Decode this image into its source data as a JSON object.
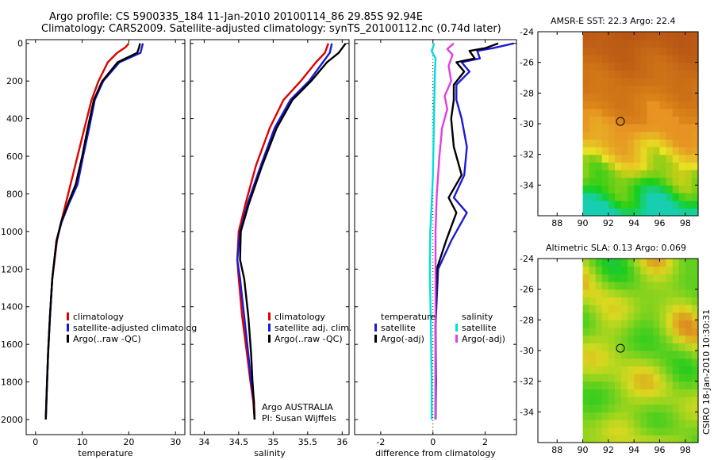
{
  "header": {
    "line1": "Argo profile: CS 5900335_184 11-Jan-2010 20100114_86 29.85S 92.94E",
    "line2": "Climatology: CARS2009. Satellite-adjusted climatology: synTS_20100112.nc (0.74d later)"
  },
  "colors": {
    "climatology": "#e00000",
    "satellite": "#1a1ad6",
    "argo": "#000000",
    "salinity_sat": "#00dede",
    "salinity_argo": "#e040e0"
  },
  "chart_data": [
    {
      "type": "line",
      "name": "temperature",
      "xlabel": "temperature",
      "ylabel": "",
      "xlim": [
        -2,
        32
      ],
      "ylim": [
        2080,
        -20
      ],
      "xticks": [
        0,
        10,
        20,
        30
      ],
      "yticks": [
        0,
        200,
        400,
        600,
        800,
        1000,
        1200,
        1400,
        1600,
        1800,
        2000
      ],
      "series": [
        {
          "name": "climatology",
          "color": "#e00000",
          "x": [
            20,
            19.3,
            17.5,
            15.5,
            13.5,
            12,
            10.5,
            9,
            7.5,
            6.5,
            5.5,
            4.6,
            3.6,
            3.1,
            2.7,
            2.4,
            2.2
          ],
          "y": [
            0,
            20,
            50,
            100,
            200,
            300,
            450,
            600,
            750,
            850,
            950,
            1050,
            1250,
            1450,
            1650,
            1850,
            2000
          ]
        },
        {
          "name": "satellite-adjusted climatology",
          "color": "#1a1ad6",
          "x": [
            23,
            22.8,
            22.5,
            18,
            14.5,
            12.7,
            11.5,
            10.2,
            9,
            7.2,
            5.6,
            4.5,
            3.6,
            3.1,
            2.7,
            2.4,
            2.2
          ],
          "y": [
            0,
            20,
            50,
            100,
            200,
            300,
            450,
            600,
            750,
            850,
            950,
            1050,
            1250,
            1450,
            1650,
            1850,
            2000
          ]
        },
        {
          "name": "Argo(..raw -QC)",
          "color": "#000000",
          "x": [
            22.4,
            22.2,
            21.8,
            17.6,
            14.3,
            12.5,
            11.2,
            10,
            8.6,
            7,
            5.5,
            4.5,
            3.6,
            3.1,
            2.7,
            2.4,
            2.2
          ],
          "y": [
            0,
            20,
            50,
            100,
            200,
            300,
            450,
            600,
            750,
            850,
            950,
            1050,
            1250,
            1450,
            1650,
            1850,
            2000
          ]
        }
      ],
      "legend": [
        "climatology",
        "satellite-adjusted climatolog",
        "Argo(..raw -QC)"
      ]
    },
    {
      "type": "line",
      "name": "salinity",
      "xlabel": "salinity",
      "ylabel": "",
      "xlim": [
        33.8,
        36.1
      ],
      "xticks": [
        34,
        34.5,
        35,
        35.5,
        36
      ],
      "xtick_labels": [
        "34",
        "34.5",
        "35",
        "35.5",
        "36"
      ],
      "series": [
        {
          "name": "climatology",
          "color": "#e00000",
          "x": [
            35.8,
            35.75,
            35.62,
            35.4,
            35.15,
            34.95,
            34.75,
            34.6,
            34.5,
            34.48,
            34.5,
            34.55,
            34.62,
            34.67,
            34.71,
            34.73
          ],
          "y": [
            0,
            50,
            100,
            200,
            300,
            450,
            650,
            850,
            1000,
            1150,
            1250,
            1450,
            1650,
            1800,
            1900,
            2000
          ]
        },
        {
          "name": "satellite adj. clim.",
          "color": "#1a1ad6",
          "x": [
            35.85,
            35.82,
            35.72,
            35.52,
            35.25,
            35.02,
            34.82,
            34.63,
            34.52,
            34.48,
            34.52,
            34.58,
            34.64,
            34.68,
            34.72,
            34.73
          ],
          "y": [
            0,
            50,
            100,
            200,
            300,
            450,
            650,
            850,
            1000,
            1150,
            1250,
            1450,
            1650,
            1800,
            1900,
            2000
          ]
        },
        {
          "name": "Argo(..raw -QC)",
          "color": "#000000",
          "x": [
            36.05,
            35.95,
            35.78,
            35.55,
            35.28,
            35.05,
            34.84,
            34.65,
            34.53,
            34.52,
            34.58,
            34.64,
            34.68,
            34.7,
            34.72,
            34.73
          ],
          "y": [
            0,
            50,
            100,
            200,
            300,
            450,
            650,
            850,
            1000,
            1150,
            1250,
            1450,
            1650,
            1800,
            1900,
            2000
          ]
        }
      ],
      "legend": [
        "climatology",
        "satellite adj. clim.",
        "Argo(..raw -QC)"
      ],
      "annotation": [
        "Argo AUSTRALIA",
        "PI: Susan Wijffels"
      ]
    },
    {
      "type": "line",
      "name": "difference",
      "xlabel": "difference from climatology",
      "ylabel": "",
      "xlim": [
        -3,
        3.2
      ],
      "xticks": [
        -2,
        0,
        2
      ],
      "zero_line": "dotted",
      "series": [
        {
          "name": "temperature satellite",
          "color": "#1a1ad6",
          "x": [
            3.1,
            2.3,
            1.7,
            1.8,
            1.1,
            1.4,
            0.9,
            0.9,
            1.1,
            1.3,
            1.2,
            0.8,
            1.3,
            0.7,
            0.2,
            0.1,
            0.12,
            0.1
          ],
          "y": [
            0,
            25,
            40,
            80,
            100,
            150,
            220,
            300,
            400,
            550,
            700,
            820,
            900,
            1050,
            1200,
            1500,
            1800,
            2000
          ]
        },
        {
          "name": "temperature Argo(-adj)",
          "color": "#000000",
          "x": [
            2.5,
            2.0,
            1.4,
            1.6,
            0.9,
            1.2,
            0.8,
            0.8,
            0.7,
            0.8,
            1.1,
            0.6,
            0.9,
            0.5,
            0.15,
            0.1,
            0.1,
            0.1
          ],
          "y": [
            0,
            25,
            40,
            80,
            100,
            150,
            220,
            300,
            400,
            550,
            700,
            820,
            900,
            1050,
            1200,
            1500,
            1800,
            2000
          ]
        },
        {
          "name": "salinity satellite",
          "color": "#00dede",
          "x": [
            0.05,
            -0.05,
            0.1,
            0.08,
            0.06,
            0.04,
            0.02,
            0.0,
            -0.05,
            -0.1,
            -0.12,
            -0.08,
            -0.05,
            -0.05
          ],
          "y": [
            0,
            40,
            80,
            150,
            250,
            400,
            550,
            700,
            850,
            1000,
            1200,
            1500,
            1800,
            2000
          ]
        },
        {
          "name": "salinity Argo(-adj)",
          "color": "#e040e0",
          "x": [
            0.8,
            0.55,
            0.75,
            0.6,
            0.7,
            0.45,
            0.55,
            0.35,
            0.25,
            0.15,
            0.1,
            0.1,
            0.1
          ],
          "y": [
            0,
            30,
            60,
            120,
            200,
            280,
            350,
            450,
            600,
            800,
            1000,
            1500,
            2000
          ]
        }
      ],
      "legend_left_title": "temperature",
      "legend_right_title": "salinity",
      "legend_left": [
        "satellite",
        "Argo(-adj)"
      ],
      "legend_right": [
        "satellite",
        "Argo(-adj)"
      ]
    },
    {
      "type": "heatmap",
      "name": "sst_map",
      "title": "AMSR-E SST: 22.3 Argo: 22.4",
      "xlim": [
        86.5,
        99
      ],
      "ylim": [
        -36,
        -24
      ],
      "xticks": [
        88,
        90,
        92,
        94,
        96,
        98
      ],
      "yticks": [
        -24,
        -26,
        -28,
        -30,
        -32,
        -34
      ],
      "marker": {
        "lon": 92.94,
        "lat": -29.85
      }
    },
    {
      "type": "heatmap",
      "name": "sla_map",
      "title": "Altimetric SLA: 0.13 Argo: 0.069",
      "xlim": [
        86.5,
        99
      ],
      "ylim": [
        -36,
        -24
      ],
      "xticks": [
        88,
        90,
        92,
        94,
        96,
        98
      ],
      "yticks": [
        -24,
        -26,
        -28,
        -30,
        -32,
        -34
      ],
      "marker": {
        "lon": 92.94,
        "lat": -29.85
      }
    }
  ],
  "credit": "CSIRO 18-Jan-2010 10:30:31"
}
